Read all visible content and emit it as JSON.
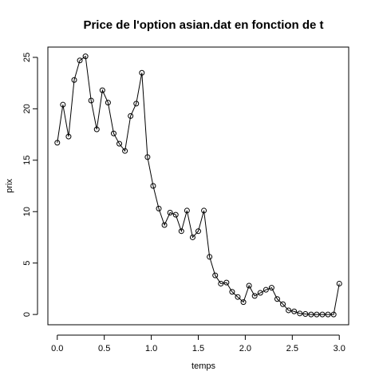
{
  "chart_data": {
    "type": "line",
    "title": "Price de l'option asian.dat en fonction de t",
    "xlabel": "temps",
    "ylabel": "prix",
    "xlim": [
      -0.1,
      3.1
    ],
    "ylim": [
      -1,
      26
    ],
    "xticks": [
      0.0,
      0.5,
      1.0,
      1.5,
      2.0,
      2.5,
      3.0
    ],
    "xtick_labels": [
      "0.0",
      "0.5",
      "1.0",
      "1.5",
      "2.0",
      "2.5",
      "3.0"
    ],
    "yticks": [
      0,
      5,
      10,
      15,
      20,
      25
    ],
    "ytick_labels": [
      "0",
      "5",
      "10",
      "15",
      "20",
      "25"
    ],
    "grid": false,
    "legend": "none",
    "marker": "open-circle",
    "color": "#000000",
    "series": [
      {
        "x": [
          0.0,
          0.06,
          0.12,
          0.18,
          0.24,
          0.3,
          0.36,
          0.42,
          0.48,
          0.54,
          0.6,
          0.66,
          0.72,
          0.78,
          0.84,
          0.9,
          0.96,
          1.02,
          1.08,
          1.14,
          1.2,
          1.26,
          1.32,
          1.38,
          1.44,
          1.5,
          1.56,
          1.62,
          1.68,
          1.74,
          1.8,
          1.86,
          1.92,
          1.98,
          2.04,
          2.1,
          2.16,
          2.22,
          2.28,
          2.34,
          2.4,
          2.46,
          2.52,
          2.58,
          2.64,
          2.7,
          2.76,
          2.82,
          2.88,
          2.94,
          3.0
        ],
        "y": [
          16.7,
          20.4,
          17.3,
          22.8,
          24.7,
          25.1,
          20.8,
          18.0,
          21.8,
          20.6,
          17.6,
          16.6,
          15.9,
          19.3,
          20.5,
          23.5,
          15.3,
          12.5,
          10.3,
          8.7,
          9.9,
          9.7,
          8.1,
          10.1,
          7.5,
          8.1,
          10.1,
          5.6,
          3.8,
          3.0,
          3.1,
          2.2,
          1.7,
          1.2,
          2.8,
          1.8,
          2.1,
          2.4,
          2.6,
          1.5,
          1.0,
          0.4,
          0.3,
          0.1,
          0.05,
          0.0,
          0.0,
          0.0,
          0.0,
          0.0,
          3.0
        ]
      }
    ]
  }
}
